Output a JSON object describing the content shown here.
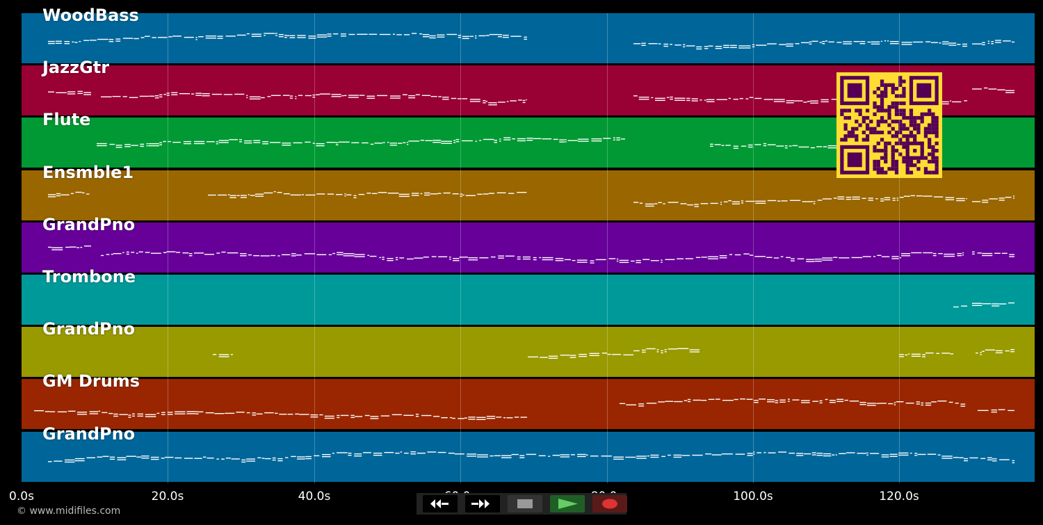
{
  "tracks": [
    {
      "name": "WoodBass",
      "color": "#006699"
    },
    {
      "name": "JazzGtr",
      "color": "#990033"
    },
    {
      "name": "Flute",
      "color": "#009933"
    },
    {
      "name": "Ensmble1",
      "color": "#996600"
    },
    {
      "name": "GrandPno",
      "color": "#660099"
    },
    {
      "name": "Trombone",
      "color": "#009999"
    },
    {
      "name": "GrandPno",
      "color": "#999900"
    },
    {
      "name": "GM Drums",
      "color": "#992600"
    },
    {
      "name": "GrandPno",
      "color": "#006699"
    }
  ],
  "time_axis": {
    "ticks": [
      "0.0s",
      "20.0s",
      "40.0s",
      "60.0s",
      "80.0s",
      "100.0s",
      "120.0s"
    ],
    "tick_values": [
      0,
      20,
      40,
      60,
      80,
      100,
      120
    ],
    "max_seconds": 138.5
  },
  "transport": {
    "buttons": [
      {
        "name": "rewind",
        "icon": "rewind-icon"
      },
      {
        "name": "fast-forward",
        "icon": "fast-forward-icon"
      },
      {
        "name": "stop",
        "icon": "stop-icon"
      },
      {
        "name": "play",
        "icon": "play-icon"
      },
      {
        "name": "record",
        "icon": "record-icon"
      }
    ]
  },
  "credit": "© www.midifiles.com",
  "qr": {
    "bg": "#ffdd33",
    "fg": "#550055"
  },
  "colors": {
    "background": "#000000",
    "notes": "#ffffff"
  }
}
